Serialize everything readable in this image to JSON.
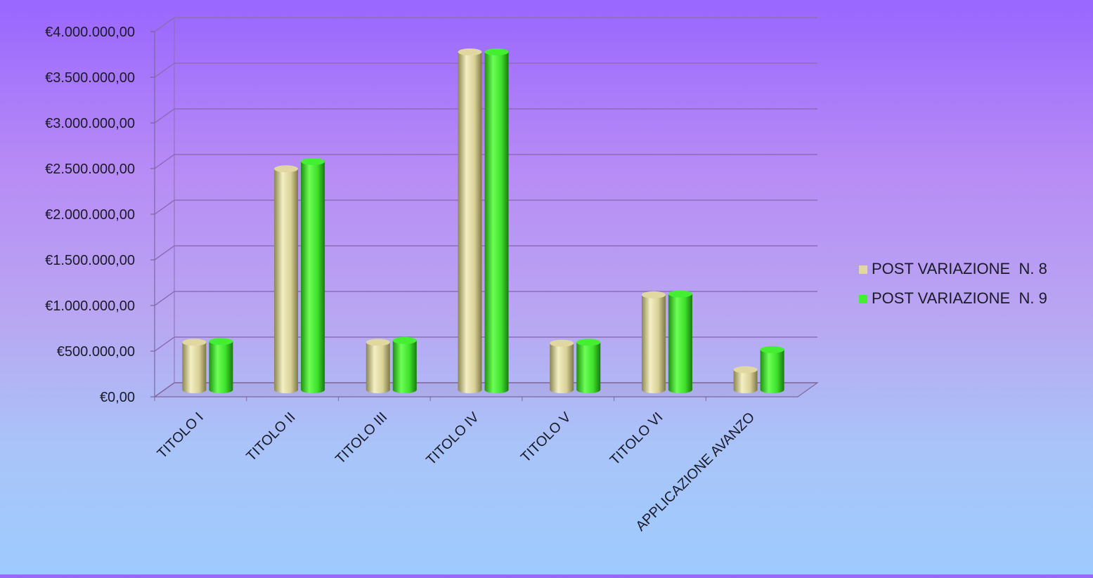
{
  "chart_data": {
    "type": "bar",
    "categories": [
      "TITOLO I",
      "TITOLO II",
      "TITOLO III",
      "TITOLO IV",
      "TITOLO V",
      "TITOLO VI",
      "APPLICAZIONE AVANZO"
    ],
    "series": [
      {
        "name": "POST VARIAZIONE  N. 8",
        "color": "#e0d8a0",
        "values": [
          520000,
          2420000,
          520000,
          3700000,
          510000,
          1040000,
          220000
        ]
      },
      {
        "name": "POST VARIAZIONE  N. 9",
        "color": "#44ee33",
        "values": [
          530000,
          2500000,
          540000,
          3700000,
          520000,
          1050000,
          440000
        ]
      }
    ],
    "y_ticks": [
      "€0,00",
      "€500.000,00",
      "€1.000.000,00",
      "€1.500.000,00",
      "€2.000.000,00",
      "€2.500.000,00",
      "€3.000.000,00",
      "€3.500.000,00",
      "€4.000.000,00"
    ],
    "ylim": [
      0,
      4000000
    ],
    "grid": true,
    "legend_position": "right",
    "style": "3d-cylinder"
  }
}
